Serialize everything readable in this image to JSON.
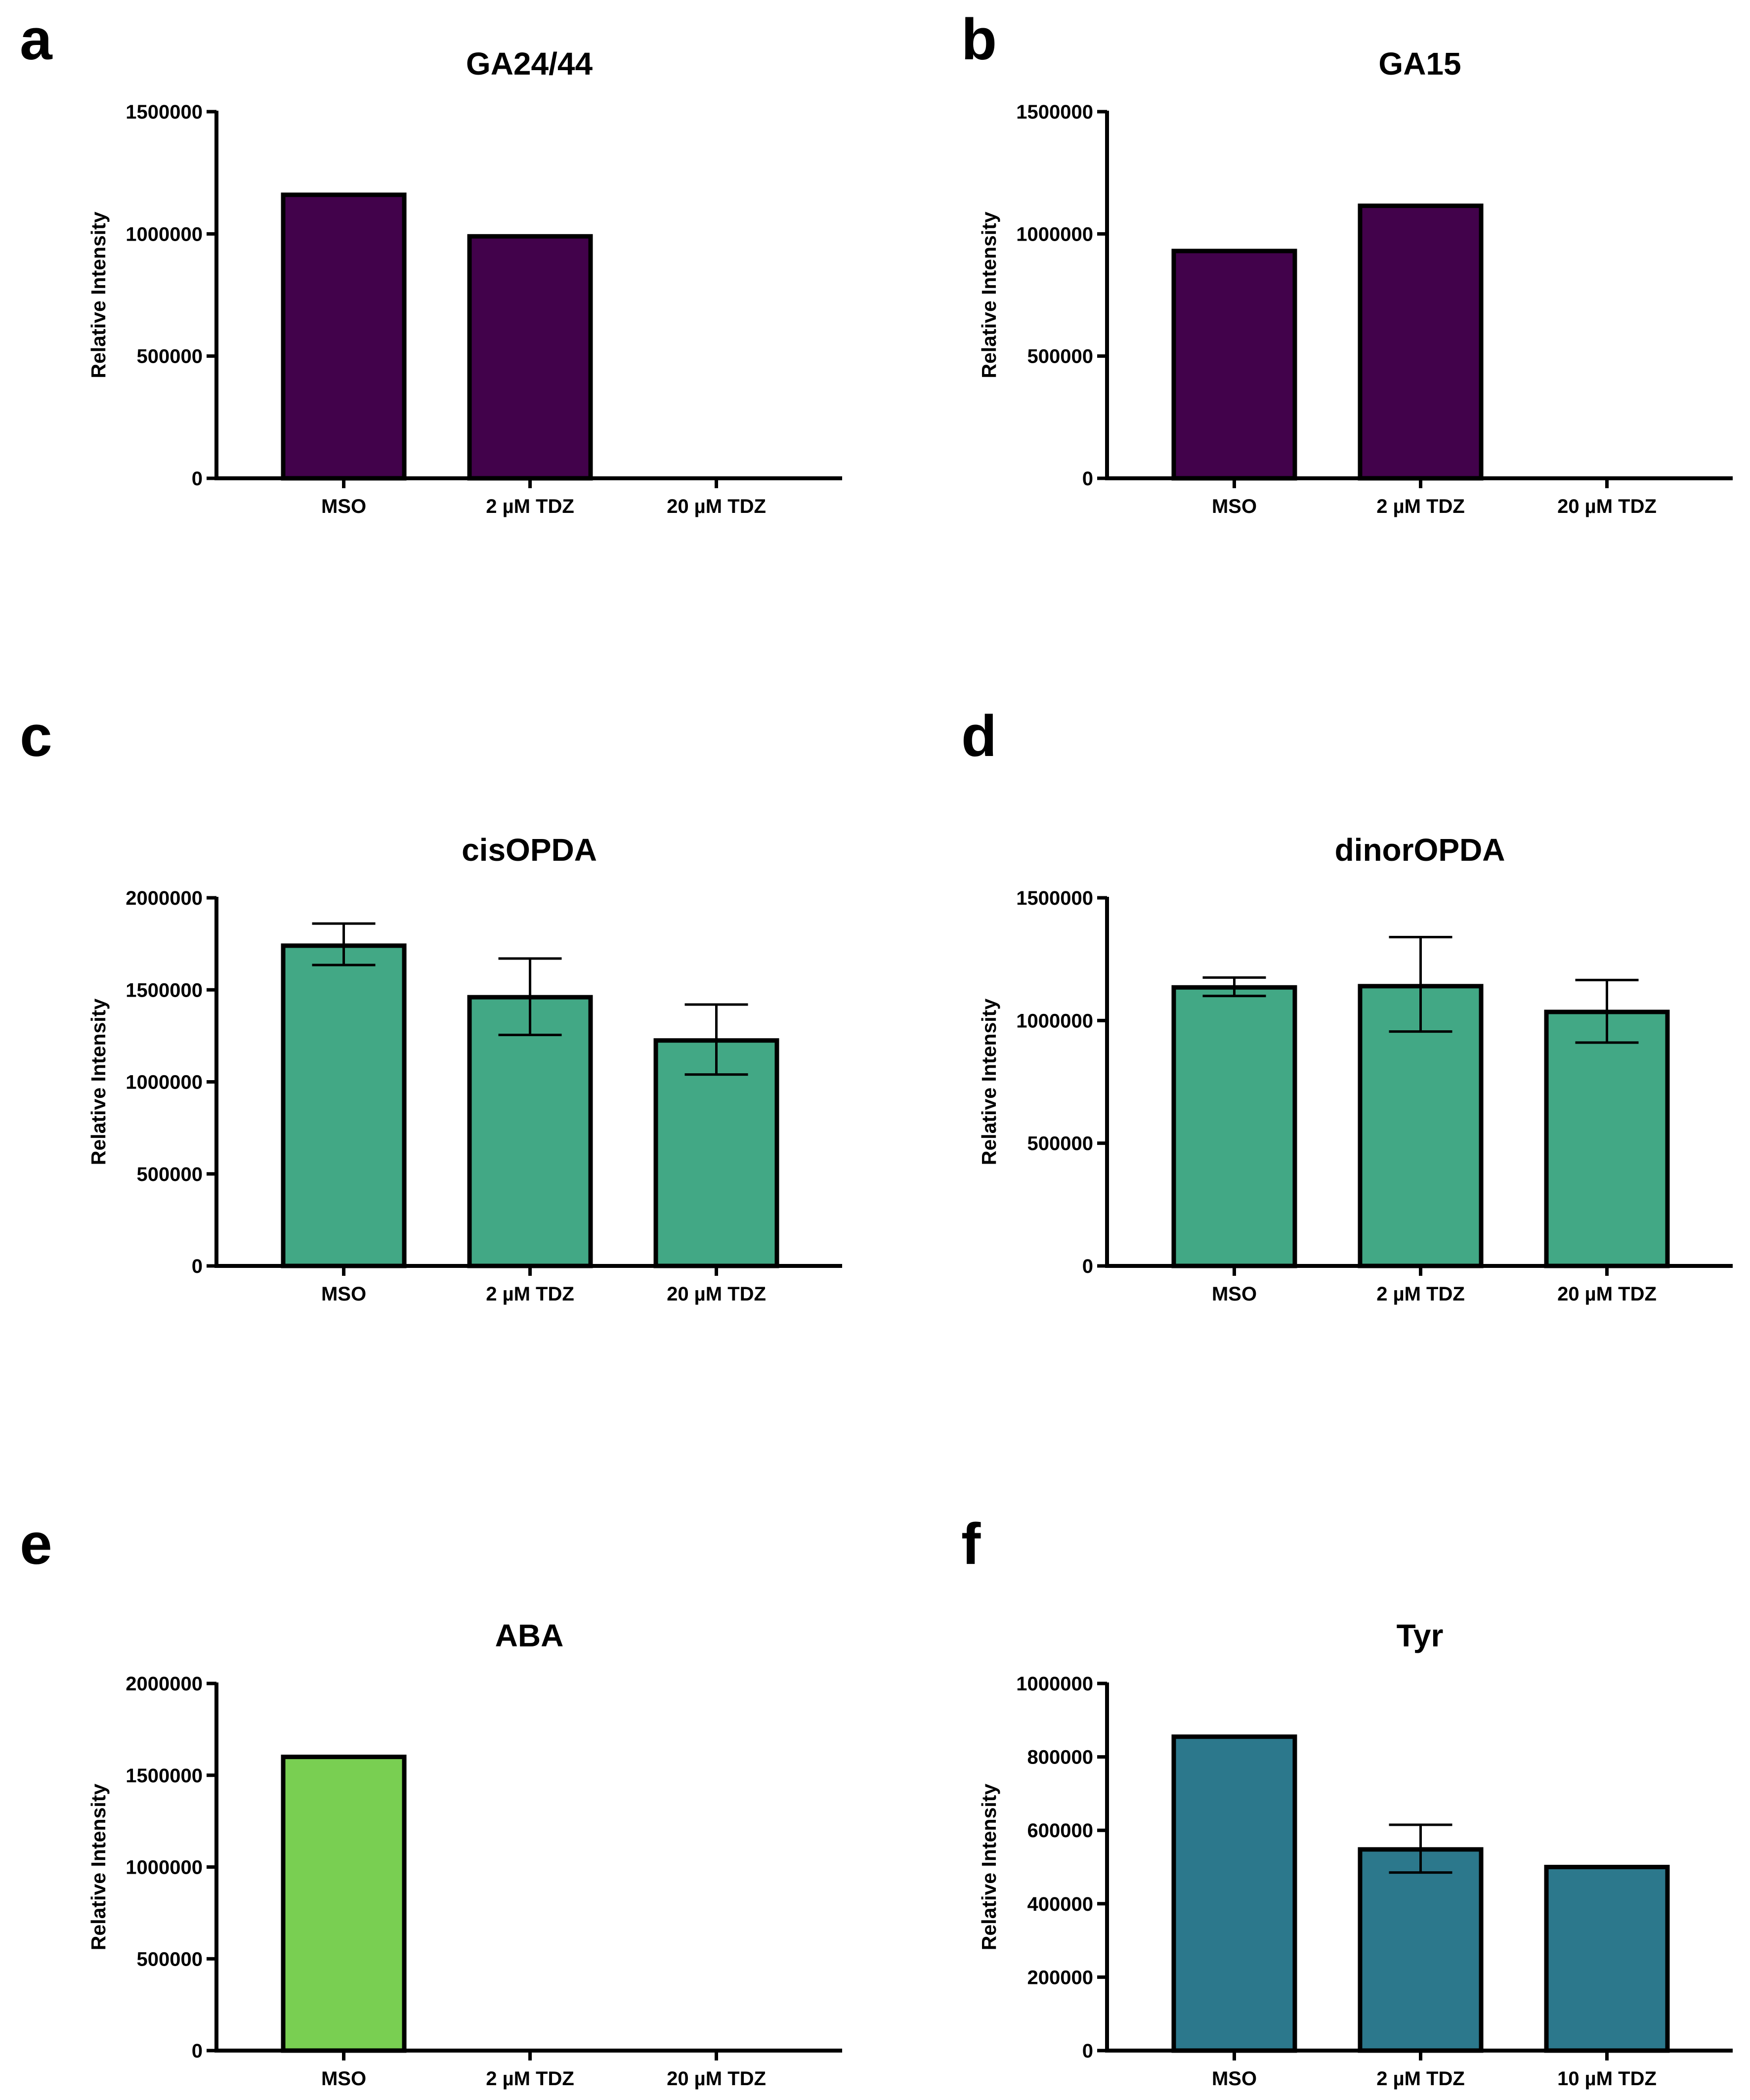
{
  "figure": {
    "panels": [
      {
        "letter": "a",
        "chart_index": 0
      },
      {
        "letter": "b",
        "chart_index": 1
      },
      {
        "letter": "c",
        "chart_index": 2
      },
      {
        "letter": "d",
        "chart_index": 3
      },
      {
        "letter": "e",
        "chart_index": 4
      },
      {
        "letter": "f",
        "chart_index": 5
      }
    ]
  },
  "chart_data": [
    {
      "type": "bar",
      "title": "GA24/44",
      "xlabel": "",
      "ylabel": "Relative Intensity",
      "categories": [
        "MSO",
        "2 µM TDZ",
        "20 µM TDZ"
      ],
      "values": [
        1160000,
        990000,
        0
      ],
      "error_low": [
        null,
        null,
        null
      ],
      "error_high": [
        null,
        null,
        null
      ],
      "ylim": [
        0,
        1500000
      ],
      "yticks": [
        0,
        500000,
        1000000,
        1500000
      ],
      "ytick_labels": [
        "0",
        "500000",
        "1000000",
        "1500000"
      ],
      "bar_color": "#42024B"
    },
    {
      "type": "bar",
      "title": "GA15",
      "xlabel": "",
      "ylabel": "Relative Intensity",
      "categories": [
        "MSO",
        "2 µM TDZ",
        "20 µM TDZ"
      ],
      "values": [
        930000,
        1115000,
        0
      ],
      "error_low": [
        null,
        null,
        null
      ],
      "error_high": [
        null,
        null,
        null
      ],
      "ylim": [
        0,
        1500000
      ],
      "yticks": [
        0,
        500000,
        1000000,
        1500000
      ],
      "ytick_labels": [
        "0",
        "500000",
        "1000000",
        "1500000"
      ],
      "bar_color": "#42024B"
    },
    {
      "type": "bar",
      "title": "cisOPDA",
      "xlabel": "",
      "ylabel": "Relative Intensity",
      "categories": [
        "MSO",
        "2 µM TDZ",
        "20 µM TDZ"
      ],
      "values": [
        1740000,
        1460000,
        1225000
      ],
      "error_low": [
        1635000,
        1255000,
        1040000
      ],
      "error_high": [
        1860000,
        1670000,
        1420000
      ],
      "ylim": [
        0,
        2000000
      ],
      "yticks": [
        0,
        500000,
        1000000,
        1500000,
        2000000
      ],
      "ytick_labels": [
        "0",
        "500000",
        "1000000",
        "1500000",
        "2000000"
      ],
      "bar_color": "#42A885"
    },
    {
      "type": "bar",
      "title": "dinorOPDA",
      "xlabel": "",
      "ylabel": "Relative Intensity",
      "categories": [
        "MSO",
        "2 µM TDZ",
        "20 µM TDZ"
      ],
      "values": [
        1135000,
        1140000,
        1035000
      ],
      "error_low": [
        1100000,
        955000,
        910000
      ],
      "error_high": [
        1175000,
        1340000,
        1165000
      ],
      "ylim": [
        0,
        1500000
      ],
      "yticks": [
        0,
        500000,
        1000000,
        1500000
      ],
      "ytick_labels": [
        "0",
        "500000",
        "1000000",
        "1500000"
      ],
      "bar_color": "#42A885"
    },
    {
      "type": "bar",
      "title": "ABA",
      "xlabel": "",
      "ylabel": "Relative Intensity",
      "categories": [
        "MSO",
        "2 µM TDZ",
        "20 µM TDZ"
      ],
      "values": [
        1600000,
        0,
        0
      ],
      "error_low": [
        null,
        null,
        null
      ],
      "error_high": [
        null,
        null,
        null
      ],
      "ylim": [
        0,
        2000000
      ],
      "yticks": [
        0,
        500000,
        1000000,
        1500000,
        2000000
      ],
      "ytick_labels": [
        "0",
        "500000",
        "1000000",
        "1500000",
        "2000000"
      ],
      "bar_color": "#79CF52"
    },
    {
      "type": "bar",
      "title": "Tyr",
      "xlabel": "",
      "ylabel": "Relative Intensity",
      "categories": [
        "MSO",
        "2 µM TDZ",
        "10 µM TDZ"
      ],
      "values": [
        855000,
        548000,
        500000
      ],
      "error_low": [
        null,
        485000,
        null
      ],
      "error_high": [
        null,
        615000,
        null
      ],
      "ylim": [
        0,
        1000000
      ],
      "yticks": [
        0,
        200000,
        400000,
        600000,
        800000,
        1000000
      ],
      "ytick_labels": [
        "0",
        "200000",
        "400000",
        "600000",
        "800000",
        "1000000"
      ],
      "bar_color": "#2C788C"
    }
  ]
}
